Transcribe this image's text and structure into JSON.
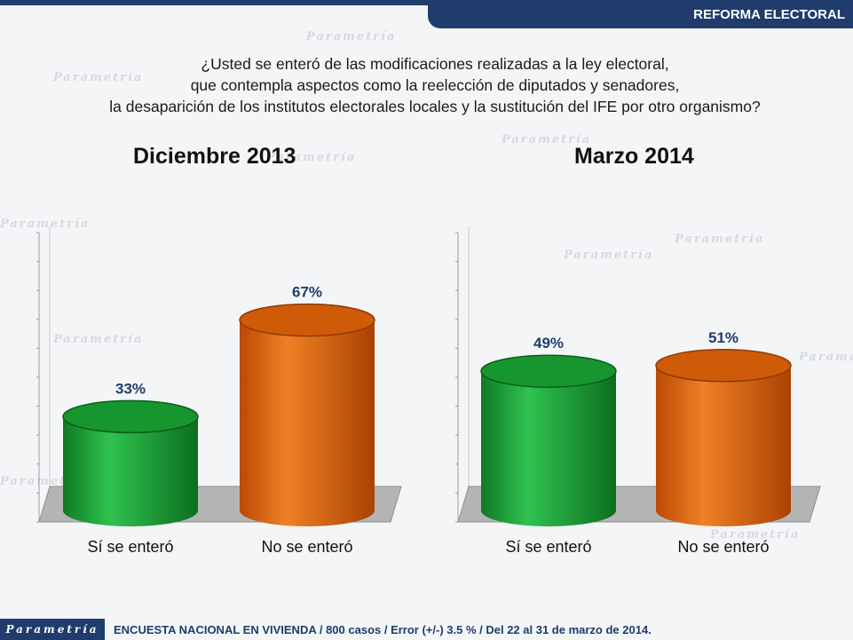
{
  "header": {
    "section": "REFORMA ELECTORAL",
    "accent": "#1f3c6d"
  },
  "question": {
    "lines": [
      "¿Usted se enteró de las modificaciones realizadas a la ley electoral,",
      "que contempla aspectos  como la reelección de diputados y senadores,",
      "la desaparición de los institutos electorales locales y la sustitución del IFE por otro organismo?"
    ]
  },
  "chart_data": [
    {
      "type": "bar",
      "title": "Diciembre 2013",
      "categories": [
        "Sí se enteró",
        "No se enteró"
      ],
      "values": [
        33,
        67
      ],
      "value_labels": [
        "33%",
        "67%"
      ],
      "colors": [
        "#1fa83c",
        "#e8680c"
      ],
      "ylim": [
        0,
        100
      ]
    },
    {
      "type": "bar",
      "title": "Marzo 2014",
      "categories": [
        "Sí se enteró",
        "No se enteró"
      ],
      "values": [
        49,
        51
      ],
      "value_labels": [
        "49%",
        "51%"
      ],
      "colors": [
        "#1fa83c",
        "#e8680c"
      ],
      "ylim": [
        0,
        100
      ]
    }
  ],
  "watermark": {
    "text": "Parametría"
  },
  "footer": {
    "logo": "Parametría",
    "note": "ENCUESTA NACIONAL EN VIVIENDA / 800 casos / Error (+/-) 3.5 % / Del 22 al 31 de marzo de 2014."
  }
}
